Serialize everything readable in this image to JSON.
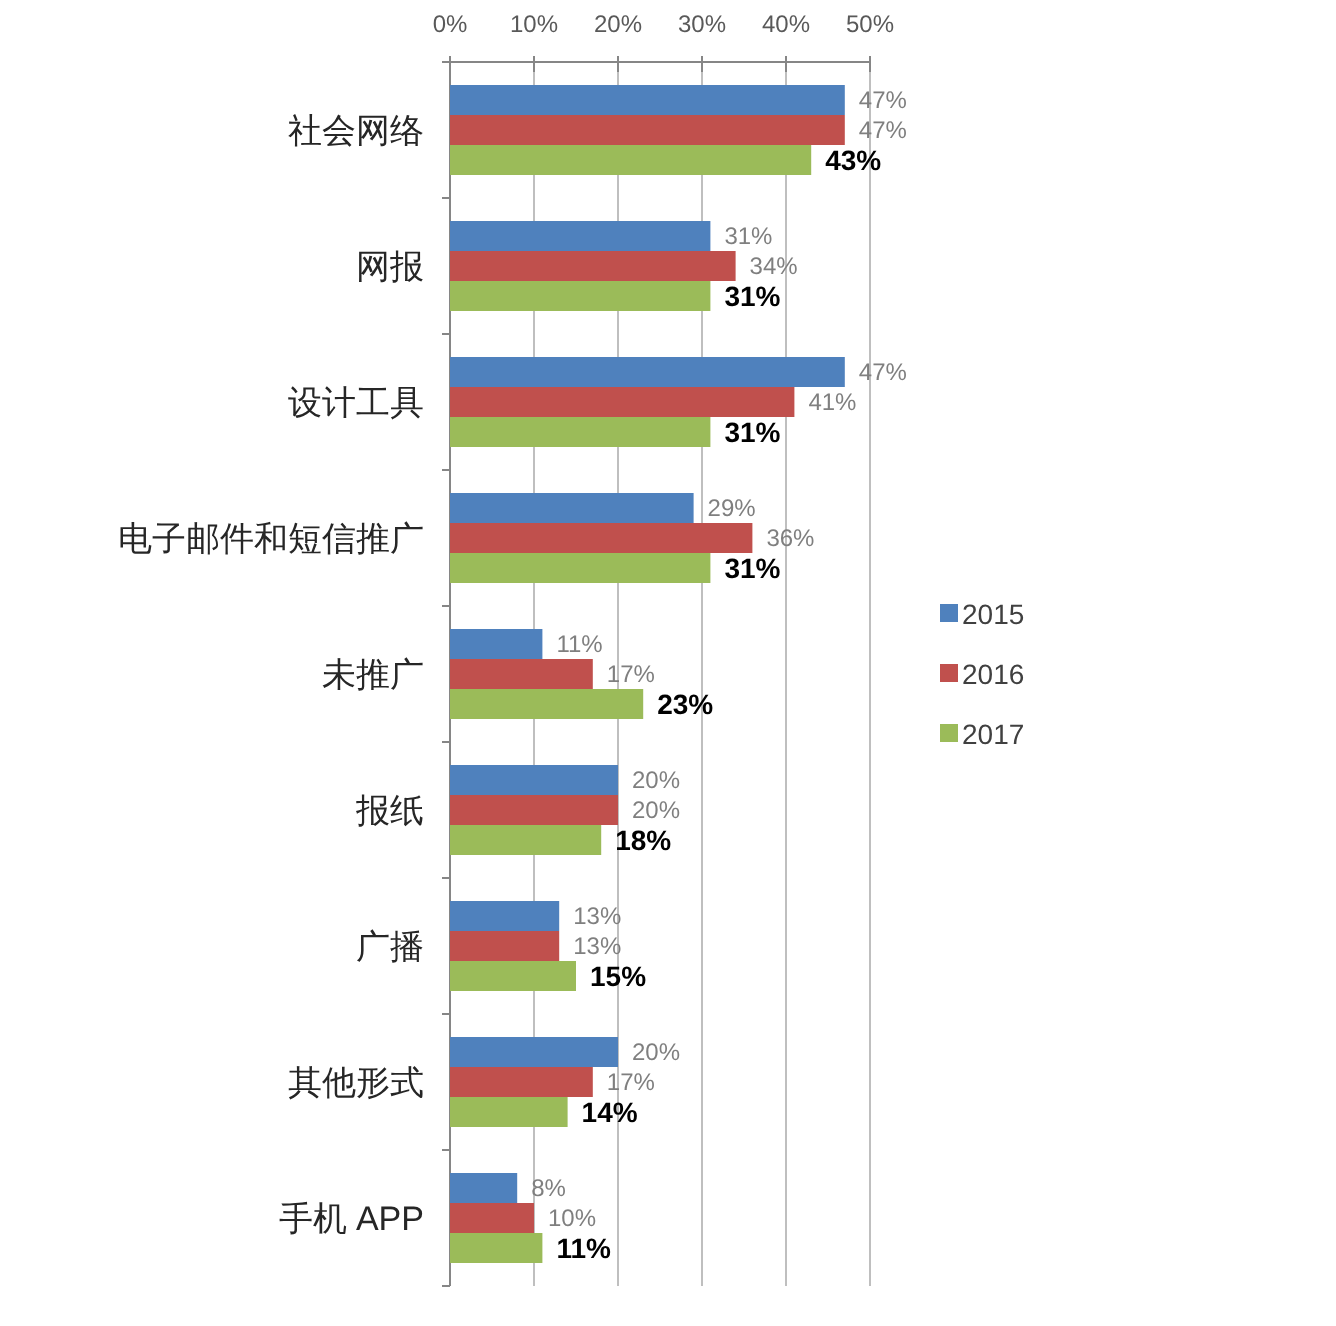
{
  "chart_data": {
    "type": "bar",
    "orientation": "horizontal",
    "categories": [
      "社会网络",
      "网报",
      "设计工具",
      "电子邮件和短信推广",
      "未推广",
      "报纸",
      "广播",
      "其他形式",
      "手机 APP"
    ],
    "series": [
      {
        "name": "2015",
        "color": "#4f81bd",
        "values": [
          47,
          31,
          47,
          29,
          11,
          20,
          13,
          20,
          8
        ],
        "value_labels": [
          "47%",
          "31%",
          "47%",
          "29%",
          "11%",
          "20%",
          "13%",
          "20%",
          "8%"
        ]
      },
      {
        "name": "2016",
        "color": "#c0504d",
        "values": [
          47,
          34,
          41,
          36,
          17,
          20,
          13,
          17,
          10
        ],
        "value_labels": [
          "47%",
          "34%",
          "41%",
          "36%",
          "17%",
          "20%",
          "13%",
          "17%",
          "10%"
        ]
      },
      {
        "name": "2017",
        "color": "#9bbb59",
        "values": [
          43,
          31,
          31,
          31,
          23,
          18,
          15,
          14,
          11
        ],
        "value_labels": [
          "43%",
          "31%",
          "31%",
          "31%",
          "23%",
          "18%",
          "15%",
          "14%",
          "11%"
        ]
      }
    ],
    "xlim": [
      0,
      50
    ],
    "xticks": [
      {
        "value": 0,
        "label": "0%"
      },
      {
        "value": 10,
        "label": "10%"
      },
      {
        "value": 20,
        "label": "20%"
      },
      {
        "value": 30,
        "label": "30%"
      },
      {
        "value": 40,
        "label": "40%"
      },
      {
        "value": 50,
        "label": "50%"
      }
    ],
    "grid": "x",
    "legend": "right"
  }
}
